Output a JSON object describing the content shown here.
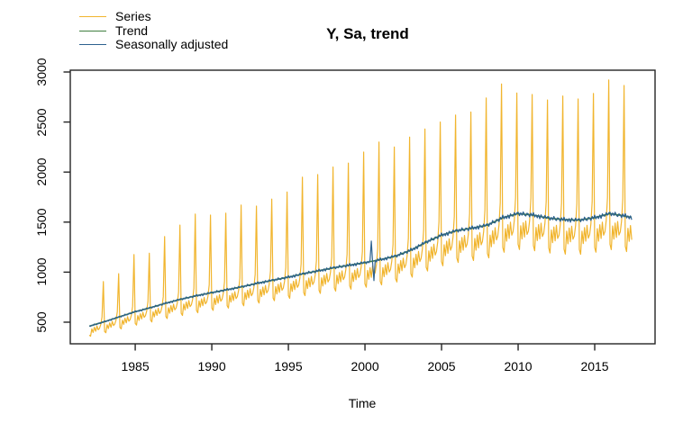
{
  "title": "Y, Sa, trend",
  "xlabel": "Time",
  "legend": [
    {
      "label": "Series",
      "color": "#F1B52E"
    },
    {
      "label": "Trend",
      "color": "#3F7E3F"
    },
    {
      "label": "Seasonally adjusted",
      "color": "#2D618F"
    }
  ],
  "axis_color": "#242424",
  "chart_data": {
    "type": "line",
    "title": "Y, Sa, trend",
    "xlabel": "Time",
    "ylabel": "",
    "grid": false,
    "legend_position": "top-left",
    "x_ticks": [
      1985,
      1990,
      1995,
      2000,
      2005,
      2010,
      2015
    ],
    "y_ticks": [
      500,
      1000,
      1500,
      2000,
      2500,
      3000
    ],
    "xlim": [
      1980.76,
      2018.94
    ],
    "ylim": [
      284,
      3018
    ],
    "x_start": 1982.0,
    "x_end": 2017.42,
    "points_per_year": 12,
    "n_points": 426,
    "series_names": [
      "Series",
      "Trend",
      "Seasonally adjusted"
    ],
    "trend_anchor_times": [
      1982,
      1983,
      1984,
      1985,
      1986,
      1987,
      1988,
      1989,
      1990,
      1991,
      1992,
      1993,
      1994,
      1995,
      1996,
      1997,
      1998,
      1999,
      2000,
      2001,
      2002,
      2003,
      2004,
      2005,
      2006,
      2007,
      2008,
      2009,
      2010,
      2011,
      2012,
      2013,
      2014,
      2015,
      2016,
      2017,
      2017.5
    ],
    "trend_values": [
      460,
      505,
      555,
      605,
      645,
      690,
      730,
      765,
      795,
      825,
      855,
      890,
      920,
      950,
      985,
      1015,
      1045,
      1070,
      1095,
      1125,
      1160,
      1220,
      1300,
      1370,
      1415,
      1440,
      1470,
      1545,
      1585,
      1570,
      1540,
      1525,
      1520,
      1545,
      1585,
      1560,
      1545
    ],
    "seasonal_factors": [
      0.8,
      0.78,
      0.92,
      0.85,
      0.94,
      0.86,
      0.95,
      0.88,
      0.89,
      0.97,
      1.1,
      null
    ],
    "december_peak_years": [
      1982,
      1983,
      1984,
      1985,
      1986,
      1987,
      1988,
      1989,
      1990,
      1991,
      1992,
      1993,
      1994,
      1995,
      1996,
      1997,
      1998,
      1999,
      2000,
      2001,
      2002,
      2003,
      2004,
      2005,
      2006,
      2007,
      2008,
      2009,
      2010,
      2011,
      2012,
      2013,
      2014,
      2015,
      2016
    ],
    "december_peak_values": [
      905,
      985,
      1175,
      1190,
      1355,
      1470,
      1580,
      1570,
      1590,
      1670,
      1660,
      1730,
      1800,
      1950,
      1975,
      2050,
      2090,
      2200,
      2300,
      2250,
      2350,
      2430,
      2500,
      2570,
      2600,
      2740,
      2880,
      2790,
      2775,
      2720,
      2760,
      2730,
      2785,
      2920,
      2865
    ],
    "series_wiggle": [
      6,
      -5,
      4,
      -7,
      5,
      -4,
      7,
      -6,
      4,
      -6,
      5,
      0
    ],
    "sa_wiggle": [
      10,
      -14,
      7,
      -9,
      16,
      -5,
      -12,
      9,
      4,
      -16,
      12,
      -7,
      18,
      -11,
      5,
      -14,
      9,
      -18,
      13,
      -4,
      -9,
      14,
      -6,
      8
    ],
    "sa_events": [
      {
        "t": 2000.4167,
        "value": 1310
      },
      {
        "t": 2000.5833,
        "value": 915
      }
    ]
  }
}
